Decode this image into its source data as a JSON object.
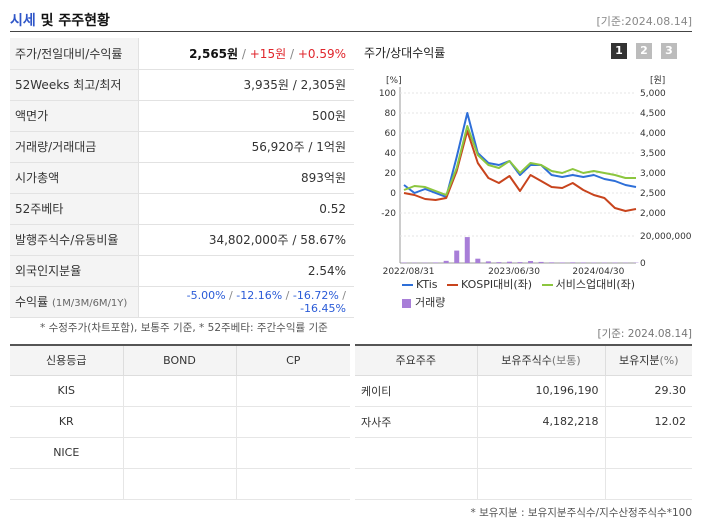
{
  "header": {
    "title_a": "시세",
    "title_b": "및 주주현황",
    "date": "[기준:2024.08.14]"
  },
  "quote": {
    "price_label": "주가/전일대비/수익률",
    "price": "2,565원",
    "change": "+15원",
    "change_pct": "+0.59%",
    "wk52_label": "52Weeks 최고/최저",
    "wk52_value": "3,935원 / 2,305원",
    "par_label": "액면가",
    "par_value": "500원",
    "volume_label": "거래량/거래대금",
    "volume_value": "56,920주 / 1억원",
    "mcap_label": "시가총액",
    "mcap_value": "893억원",
    "beta_label": "52주베타",
    "beta_value": "0.52",
    "shares_label": "발행주식수/유동비율",
    "shares_value": "34,802,000주 / 58.67%",
    "foreign_label": "외국인지분율",
    "foreign_value": "2.54%",
    "return_label": "수익률",
    "return_sub": "(1M/3M/6M/1Y)",
    "return_1m": "-5.00%",
    "return_3m": "-12.16%",
    "return_6m": "-16.72%",
    "return_1y": "-16.45%"
  },
  "note1": "* 수정주가(차트포함), 보통주 기준, * 52주베타: 주간수익률 기준",
  "chart_panel": {
    "title": "주가/상대수익률",
    "buttons": [
      "1",
      "2",
      "3"
    ],
    "legend": {
      "ktis": "KTis",
      "kospi": "KOSPI대비(좌)",
      "sector": "서비스업대비(좌)",
      "volume": "거래량"
    },
    "colors": {
      "ktis": "#2e6fd8",
      "kospi": "#c8441d",
      "sector": "#8cc63f",
      "volume": "#a87ed8"
    }
  },
  "chart_data": {
    "type": "line",
    "left_axis_unit": "[%]",
    "right_axis_unit": "[원]",
    "left_ticks": [
      "100",
      "80",
      "60",
      "40",
      "20",
      "0",
      "-20"
    ],
    "right_ticks": [
      "5,000",
      "4,500",
      "4,000",
      "3,500",
      "3,000",
      "2,500",
      "2,000"
    ],
    "volume_tick": "20,000,000",
    "volume_zero_tick": "0",
    "x_ticks": [
      "2022/08/31",
      "2023/06/30",
      "2024/04/30"
    ],
    "ylim_left": [
      -20,
      100
    ],
    "ylim_right": [
      2000,
      5000
    ],
    "series": [
      {
        "name": "KTis",
        "axis": "right",
        "values": [
          2700,
          2500,
          2600,
          2500,
          2400,
          3400,
          4500,
          3500,
          3250,
          3200,
          3300,
          2950,
          3200,
          3200,
          2950,
          2900,
          2950,
          2900,
          2950,
          2850,
          2800,
          2700,
          2650
        ]
      },
      {
        "name": "KOSPI대비(좌)",
        "axis": "left",
        "values": [
          0,
          -2,
          -6,
          -7,
          -5,
          22,
          62,
          30,
          15,
          10,
          17,
          2,
          18,
          12,
          6,
          5,
          10,
          3,
          -2,
          -5,
          -15,
          -18,
          -16
        ]
      },
      {
        "name": "서비스업대비(좌)",
        "axis": "left",
        "values": [
          3,
          7,
          6,
          2,
          -2,
          25,
          67,
          38,
          28,
          25,
          32,
          20,
          30,
          28,
          22,
          20,
          24,
          20,
          22,
          20,
          18,
          15,
          15
        ]
      }
    ],
    "volume": [
      0.4,
      0.3,
      0.3,
      0.5,
      2.0,
      11.5,
      24.0,
      4.0,
      1.5,
      0.8,
      1.2,
      0.8,
      1.8,
      1.0,
      0.6,
      0.5,
      0.6,
      0.5,
      0.4,
      0.4,
      0.4,
      0.3,
      0.3
    ],
    "volume_max": 25000000
  },
  "date2": "[기준: 2024.08.14]",
  "credit": {
    "headers": [
      "신용등급",
      "BOND",
      "CP"
    ],
    "rows": [
      [
        "KIS",
        "",
        ""
      ],
      [
        "KR",
        "",
        ""
      ],
      [
        "NICE",
        "",
        ""
      ],
      [
        "",
        "",
        ""
      ]
    ]
  },
  "holders": {
    "headers": [
      "주요주주",
      "보유주식수",
      "(보통)",
      "보유지분",
      "(%)"
    ],
    "rows": [
      [
        "케이티",
        "10,196,190",
        "29.30"
      ],
      [
        "자사주",
        "4,182,218",
        "12.02"
      ],
      [
        "",
        "",
        ""
      ],
      [
        "",
        "",
        ""
      ]
    ]
  },
  "note2": "* 보유지분 : 보유지분주식수/지수산정주식수*100"
}
